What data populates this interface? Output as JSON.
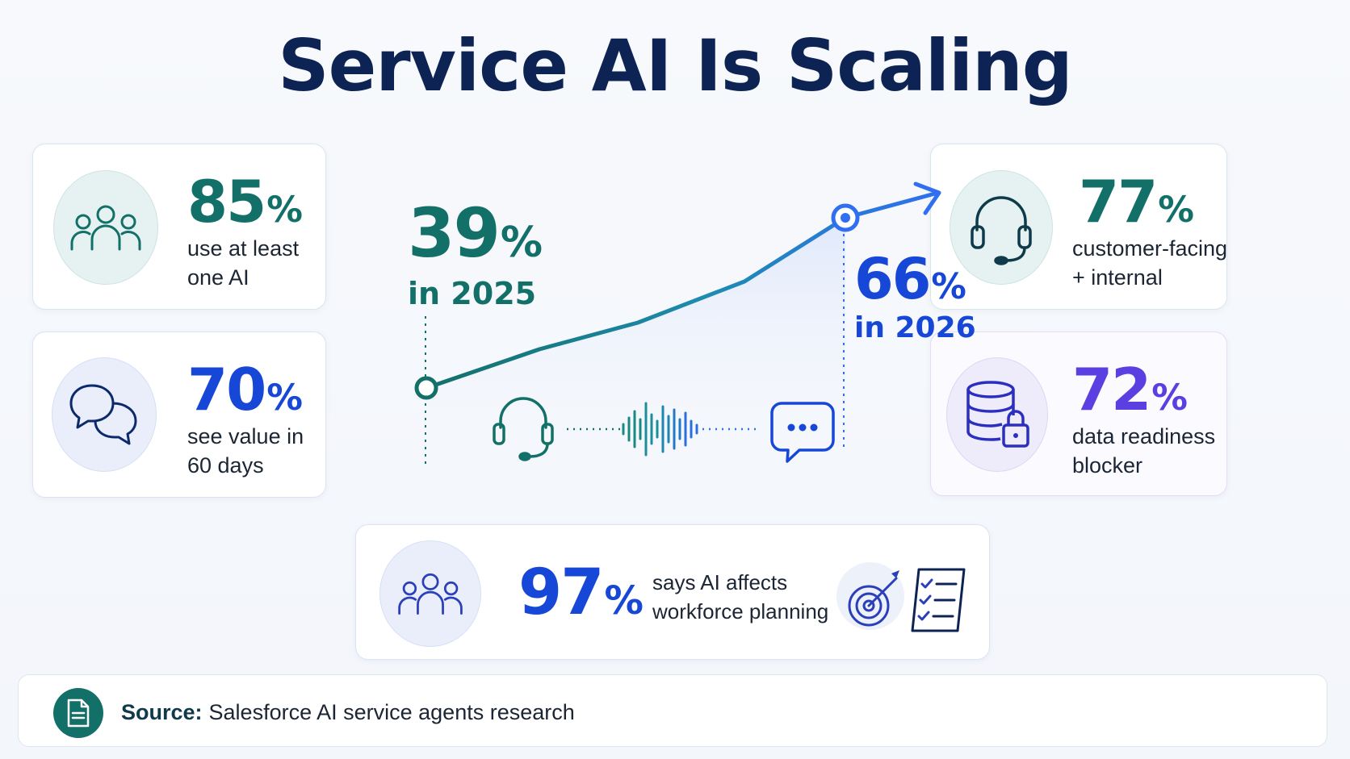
{
  "title": "Service AI Is Scaling",
  "colors": {
    "teal": "#137069",
    "blue": "#1747d6",
    "purple": "#5b3fe0",
    "navy": "#0c2354"
  },
  "cards": {
    "use_ai": {
      "value": "85",
      "unit": "%",
      "line1": "use at least",
      "line2": "one AI",
      "icon": "people-group-icon"
    },
    "value_60": {
      "value": "70",
      "unit": "%",
      "line1": "see value in",
      "line2": "60 days",
      "icon": "chat-bubbles-icon"
    },
    "customer_internal": {
      "value": "77",
      "unit": "%",
      "line1": "customer-facing",
      "line2": "+ internal",
      "icon": "headset-icon"
    },
    "data_readiness": {
      "value": "72",
      "unit": "%",
      "line1": "data readiness",
      "line2": "blocker",
      "icon": "database-lock-icon"
    },
    "workforce": {
      "value": "97",
      "unit": "%",
      "line1": "says AI affects",
      "line2": "workforce planning",
      "icon": "people-group-icon"
    }
  },
  "growth": {
    "start_value": "39",
    "start_unit": "%",
    "start_label": "in 2025",
    "end_value": "66",
    "end_unit": "%",
    "end_label": "in 2026"
  },
  "source": {
    "label": "Source:",
    "text": "Salesforce AI service agents research",
    "icon": "document-icon"
  }
}
